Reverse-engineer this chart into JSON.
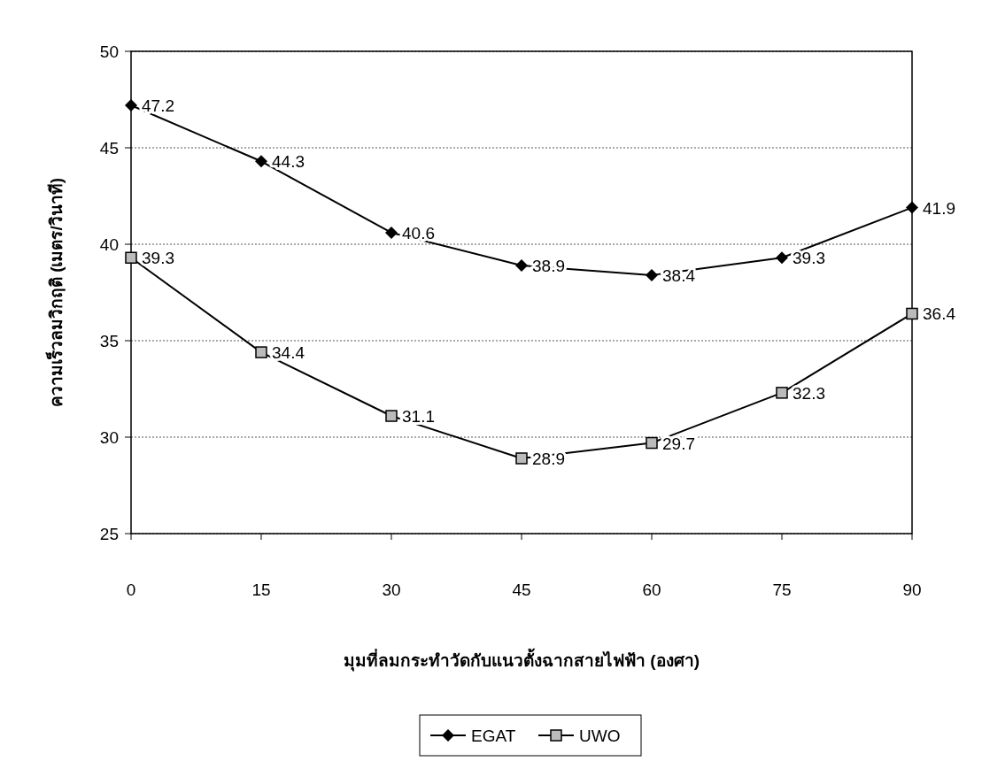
{
  "chart_data": {
    "type": "line",
    "xlabel": "มุมที่ลมกระทำวัดกับแนวตั้งฉากสายไฟฟ้า (องศา)",
    "ylabel": "ความเร็วลมวิกฤติ (เมตร/วินาที)",
    "x": [
      0,
      15,
      30,
      45,
      60,
      75,
      90
    ],
    "xlim": [
      0,
      90
    ],
    "xticks": [
      0,
      15,
      30,
      45,
      60,
      75,
      90
    ],
    "ylim": [
      25,
      50
    ],
    "yticks": [
      25,
      30,
      35,
      40,
      45,
      50
    ],
    "grid": "y",
    "legend": "bottom",
    "data_labels": true,
    "series": [
      {
        "name": "EGAT",
        "color": "#000000",
        "marker": "diamond",
        "values": [
          47.2,
          44.3,
          40.6,
          38.9,
          38.4,
          39.3,
          41.9
        ]
      },
      {
        "name": "UWO",
        "color": "#000000",
        "marker": "square",
        "values": [
          39.3,
          34.4,
          31.1,
          28.9,
          29.7,
          32.3,
          36.4
        ]
      }
    ]
  }
}
